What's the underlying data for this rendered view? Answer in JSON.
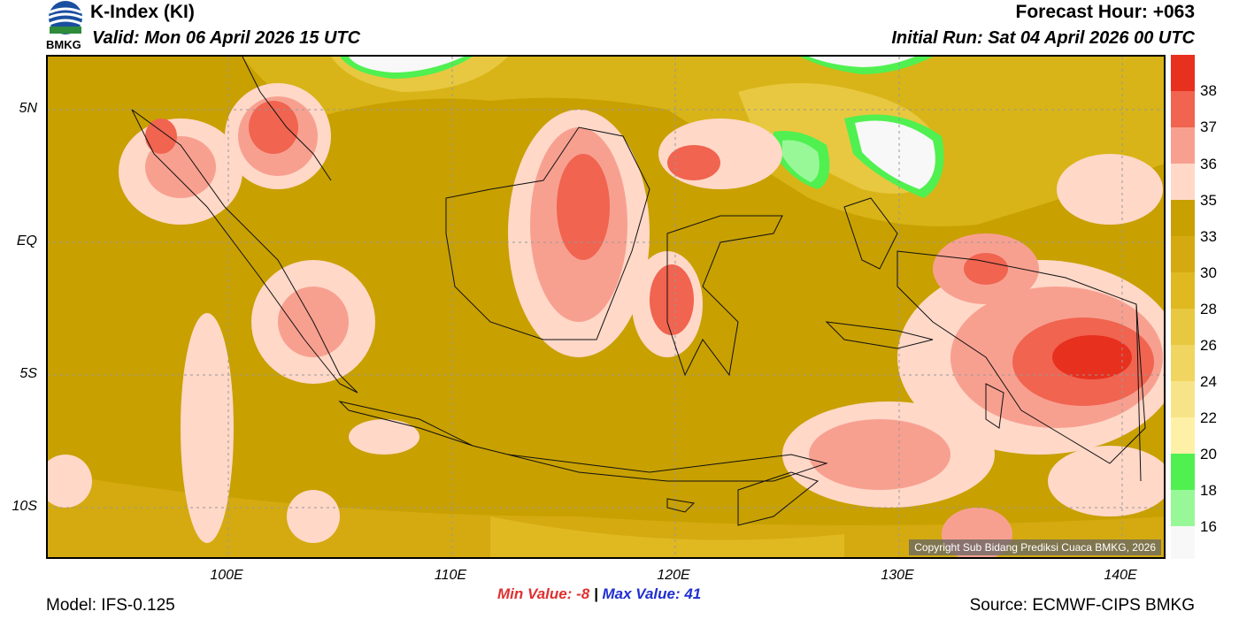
{
  "header": {
    "title": "K-Index (KI)",
    "valid": "Valid: Mon 06 April 2026 15 UTC",
    "forecast_hour": "Forecast Hour: +063",
    "initial_run": "Initial Run: Sat 04 April 2026 00 UTC",
    "logo_text": "BMKG"
  },
  "axes": {
    "lat_labels": [
      "5N",
      "EQ",
      "5S",
      "10S"
    ],
    "lon_labels": [
      "100E",
      "110E",
      "120E",
      "130E",
      "140E"
    ]
  },
  "colorbar": {
    "labels": [
      "38",
      "37",
      "36",
      "35",
      "33",
      "30",
      "28",
      "26",
      "24",
      "22",
      "20",
      "18",
      "16"
    ],
    "colors": [
      "#e8301e",
      "#f06450",
      "#f8a090",
      "#ffd8c8",
      "#c8a000",
      "#d4aa10",
      "#e0b820",
      "#e8c840",
      "#f0d660",
      "#f8e488",
      "#fff0a8",
      "#50f050",
      "#98f898",
      "#f8f8f8"
    ]
  },
  "map": {
    "copyright": "Copyright Sub Bidang Prediksi Cuaca BMKG, 2026"
  },
  "footer": {
    "min_label": "Min Value:  -8",
    "separator": "|",
    "max_label": "Max Value:  41",
    "model": "Model: IFS-0.125",
    "source": "Source: ECMWF-CIPS BMKG"
  }
}
